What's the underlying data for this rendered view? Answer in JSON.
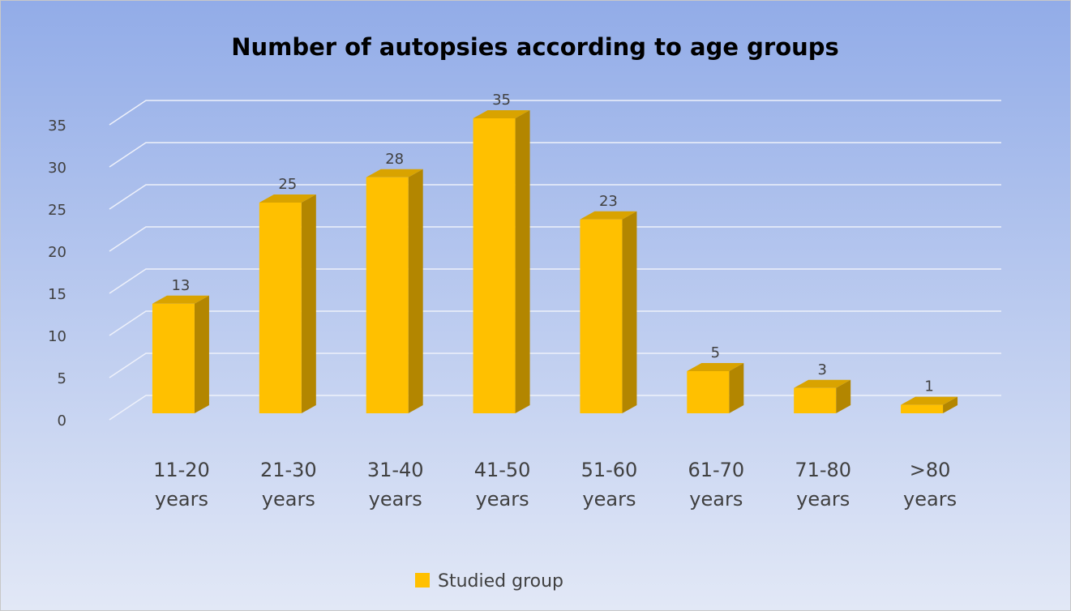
{
  "chart_data": {
    "type": "bar3d",
    "title": "Number of autopsies according to age groups",
    "categories": [
      "11-20 years",
      "21-30 years",
      "31-40 years",
      "41-50 years",
      "51-60 years",
      "61-70 years",
      "71-80 years",
      ">80 years"
    ],
    "series": [
      {
        "name": "Studied group",
        "color": "#ffc000",
        "values": [
          13,
          25,
          28,
          35,
          23,
          5,
          3,
          1
        ]
      }
    ],
    "ylim": [
      0,
      35
    ],
    "yticks": [
      0,
      5,
      10,
      15,
      20,
      25,
      30,
      35
    ],
    "grid": true,
    "legend": "bottom"
  }
}
